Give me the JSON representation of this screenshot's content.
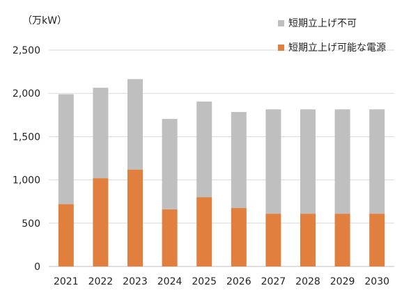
{
  "chart_data": {
    "type": "bar",
    "stacked": true,
    "ylabel": "（万kW）",
    "ylim": [
      0,
      2500
    ],
    "yticks": [
      "0",
      "500",
      "1,000",
      "1,500",
      "2,000",
      "2,500"
    ],
    "ytick_values": [
      0,
      500,
      1000,
      1500,
      2000,
      2500
    ],
    "grid": true,
    "legend_position": "top-right",
    "categories": [
      "2021",
      "2022",
      "2023",
      "2024",
      "2025",
      "2026",
      "2027",
      "2028",
      "2029",
      "2030"
    ],
    "series": [
      {
        "name": "短期立上げ可能な電源",
        "color": "#e07f3e",
        "values": [
          720,
          1020,
          1120,
          660,
          800,
          675,
          610,
          610,
          610,
          610
        ]
      },
      {
        "name": "短期立上げ不可",
        "color": "#bfbfbf",
        "values": [
          1270,
          1045,
          1045,
          1045,
          1105,
          1110,
          1205,
          1205,
          1205,
          1205
        ]
      }
    ]
  }
}
